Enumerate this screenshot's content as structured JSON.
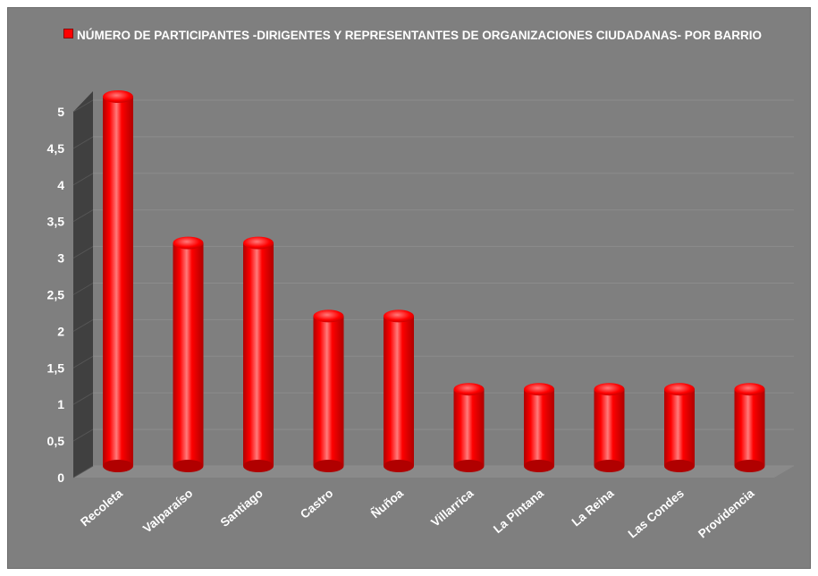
{
  "chart_data": {
    "type": "bar",
    "legend": "NÚMERO DE PARTICIPANTES -DIRIGENTES Y  REPRESENTANTES DE ORGANIZACIONES CIUDADANAS- POR BARRIO",
    "legend_position": "top-left",
    "categories": [
      "Recoleta",
      "Valparaíso",
      "Santiago",
      "Castro",
      "Ñuñoa",
      "Villarrica",
      "La Pintana",
      "La Reina",
      "Las Condes",
      "Providencia"
    ],
    "values": [
      5,
      3,
      3,
      2,
      2,
      1,
      1,
      1,
      1,
      1
    ],
    "ylim": [
      0,
      5
    ],
    "yticks": [
      "0",
      "0,5",
      "1",
      "1,5",
      "2",
      "2,5",
      "3",
      "3,5",
      "4",
      "4,5",
      "5"
    ],
    "grid": true,
    "colors": {
      "bar": "#ff0000",
      "bar_dark": "#b00000",
      "bar_highlight": "#ff7a7a",
      "background": "#7f7f7f",
      "side_wall": "#404040",
      "floor": "#8a8a8a",
      "gridline": "#8c8c8c",
      "text": "#ffffff"
    }
  }
}
